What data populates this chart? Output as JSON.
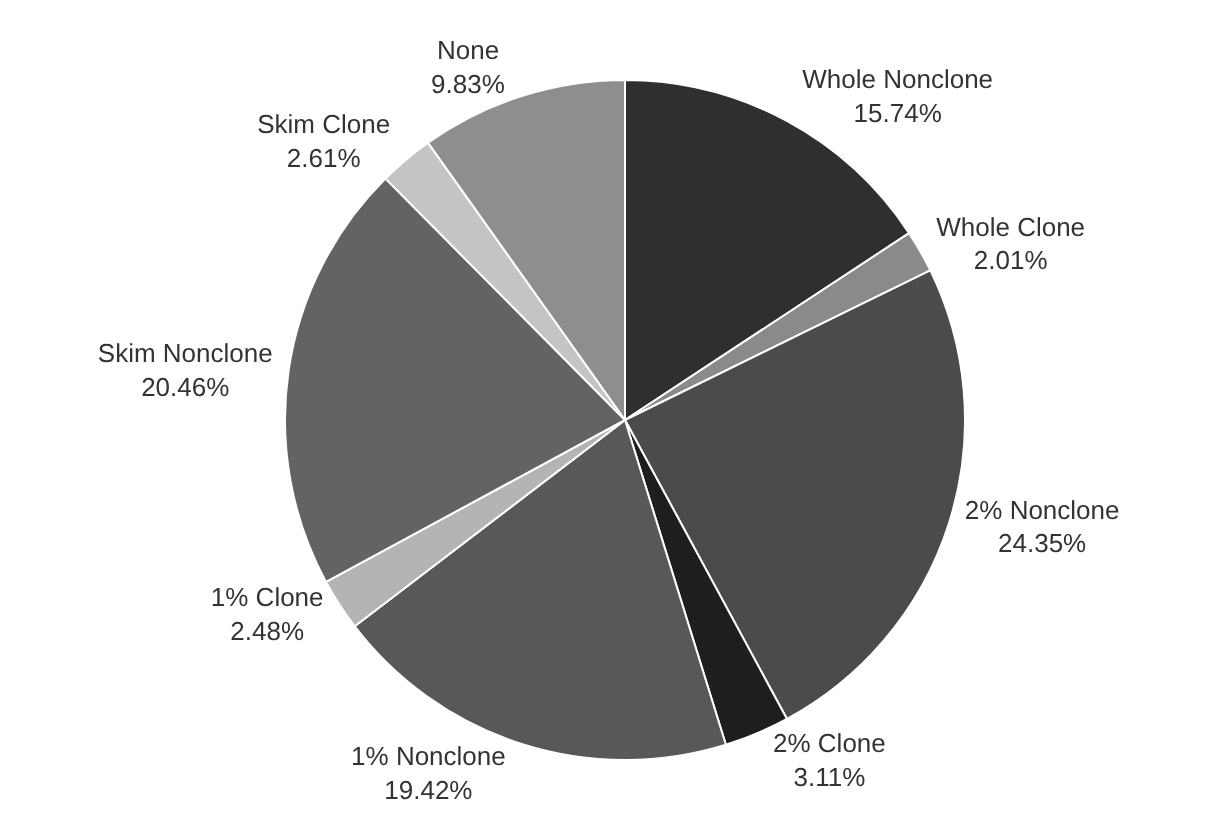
{
  "chart_data": {
    "type": "pie",
    "categories": [
      "Whole Nonclone",
      "Whole Clone",
      "2% Nonclone",
      "2% Clone",
      "1% Nonclone",
      "1% Clone",
      "Skim Nonclone",
      "Skim Clone",
      "None"
    ],
    "values": [
      15.74,
      2.01,
      24.35,
      3.11,
      19.42,
      2.48,
      20.46,
      2.61,
      9.83
    ],
    "value_labels": [
      "15.74%",
      "2.01%",
      "24.35%",
      "3.11%",
      "19.42%",
      "2.48%",
      "20.46%",
      "2.61%",
      "9.83%"
    ],
    "colors": [
      "#2f2f2f",
      "#8a8a8a",
      "#4b4b4b",
      "#1e1e1e",
      "#585858",
      "#b4b4b4",
      "#636363",
      "#c4c4c4",
      "#8e8e8e"
    ],
    "legend": false
  }
}
